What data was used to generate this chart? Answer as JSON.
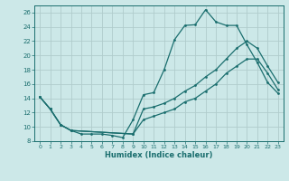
{
  "xlabel": "Humidex (Indice chaleur)",
  "xlim": [
    -0.5,
    23.5
  ],
  "ylim": [
    8,
    27
  ],
  "yticks": [
    8,
    10,
    12,
    14,
    16,
    18,
    20,
    22,
    24,
    26
  ],
  "xticks": [
    0,
    1,
    2,
    3,
    4,
    5,
    6,
    7,
    8,
    9,
    10,
    11,
    12,
    13,
    14,
    15,
    16,
    17,
    18,
    19,
    20,
    21,
    22,
    23
  ],
  "background_color": "#cce8e8",
  "line_color": "#1a6e6e",
  "grid_color": "#b0cccc",
  "line1_x": [
    0,
    1,
    2,
    3,
    4,
    5,
    6,
    7,
    8,
    9,
    10,
    11,
    12,
    13,
    14,
    15,
    16,
    17,
    18,
    19,
    20,
    21,
    22,
    23
  ],
  "line1_y": [
    14.2,
    12.5,
    10.3,
    9.5,
    9.0,
    9.0,
    9.0,
    8.8,
    8.5,
    11.0,
    14.5,
    14.8,
    18.0,
    22.2,
    24.2,
    24.3,
    26.4,
    24.7,
    24.2,
    24.2,
    21.5,
    19.0,
    16.2,
    14.7
  ],
  "line2_x": [
    0,
    1,
    2,
    3,
    9,
    10,
    11,
    12,
    13,
    14,
    15,
    16,
    17,
    18,
    19,
    20,
    21,
    22,
    23
  ],
  "line2_y": [
    14.2,
    12.5,
    10.3,
    9.5,
    9.0,
    12.5,
    12.8,
    13.3,
    14.0,
    15.0,
    15.8,
    17.0,
    18.0,
    19.5,
    21.0,
    22.0,
    21.0,
    18.5,
    16.2
  ],
  "line3_x": [
    0,
    1,
    2,
    3,
    9,
    10,
    11,
    12,
    13,
    14,
    15,
    16,
    17,
    18,
    19,
    20,
    21,
    22,
    23
  ],
  "line3_y": [
    14.2,
    12.5,
    10.3,
    9.5,
    9.0,
    11.0,
    11.5,
    12.0,
    12.5,
    13.5,
    14.0,
    15.0,
    16.0,
    17.5,
    18.5,
    19.5,
    19.5,
    17.5,
    15.2
  ]
}
